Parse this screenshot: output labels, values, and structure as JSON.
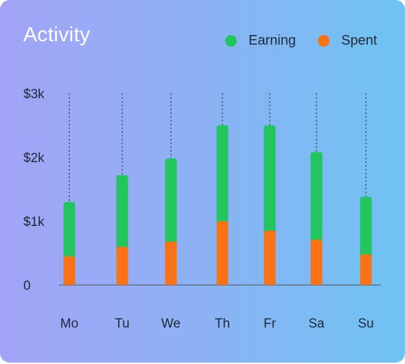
{
  "title": "Activity",
  "legend": [
    {
      "label": "Earning",
      "color": "#22c55e"
    },
    {
      "label": "Spent",
      "color": "#f97316"
    }
  ],
  "chart_data": {
    "type": "bar",
    "stacked": true,
    "categories": [
      "Mo",
      "Tu",
      "We",
      "Th",
      "Fr",
      "Sa",
      "Su"
    ],
    "series": [
      {
        "name": "Spent",
        "color": "#f97316",
        "values": [
          0.45,
          0.6,
          0.68,
          1.0,
          0.85,
          0.71,
          0.48
        ]
      },
      {
        "name": "Earning",
        "color": "#22c55e",
        "values": [
          0.85,
          1.12,
          1.3,
          1.5,
          1.65,
          1.37,
          0.9
        ]
      }
    ],
    "totals": [
      1.3,
      1.72,
      1.98,
      2.5,
      2.5,
      2.08,
      1.38
    ],
    "unit": "thousands of dollars",
    "yticks": [
      "0",
      "$1k",
      "$2k",
      "$3k"
    ],
    "ylim": [
      0,
      3
    ],
    "grid": "dotted vertical guide lines per category",
    "legend_position": "top-right",
    "xlabel": "",
    "ylabel": ""
  }
}
